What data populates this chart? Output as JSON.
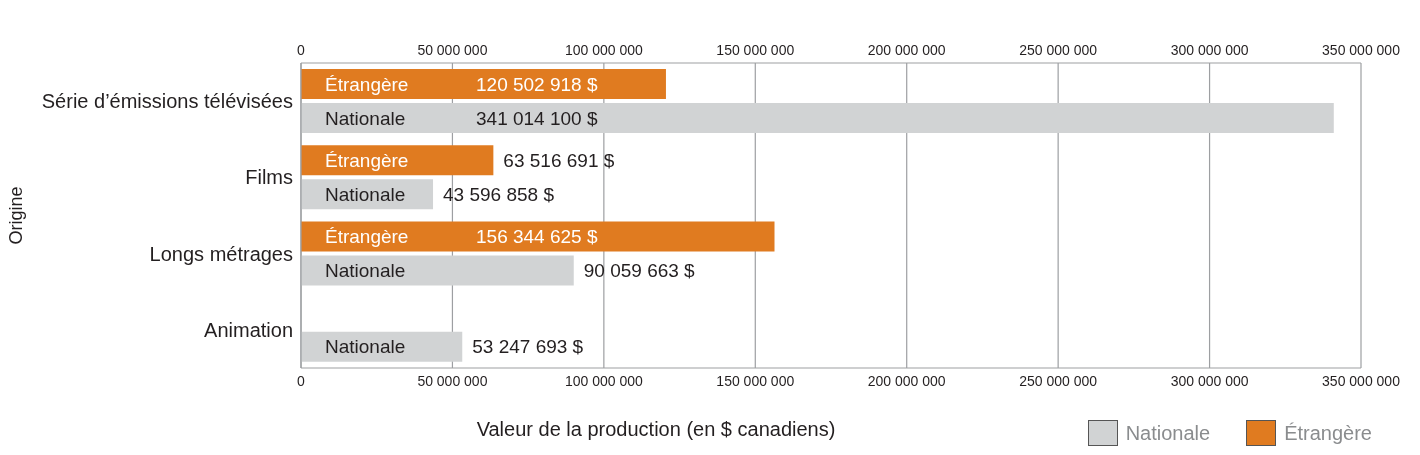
{
  "chart_data": {
    "type": "bar",
    "orientation": "horizontal",
    "xlabel": "Valeur de la production (en $ canadiens)",
    "ylabel": "Origine",
    "categories": [
      "Série d’émissions télévisées",
      "Films",
      "Longs métrages",
      "Animation"
    ],
    "series": [
      {
        "name": "Étrangère",
        "color": "#e07b20",
        "values": [
          120502918,
          63516691,
          156344625,
          null
        ],
        "value_labels": [
          "120 502 918 $",
          "63 516 691 $",
          "156 344 625 $",
          null
        ]
      },
      {
        "name": "Nationale",
        "color": "#d1d3d4",
        "values": [
          341014100,
          43596858,
          90059663,
          53247693
        ],
        "value_labels": [
          "341 014 100 $",
          "43 596 858 $",
          "90 059 663 $",
          "53 247 693 $"
        ]
      }
    ],
    "xlim": [
      0,
      350000000
    ],
    "xticks": [
      0,
      {
        "value": 50000000,
        "label": "50 000 000"
      },
      {
        "value": 100000000,
        "label": "100 000 000"
      },
      {
        "value": 150000000,
        "label": "150 000 000"
      },
      {
        "value": 200000000,
        "label": "200 000 000"
      },
      {
        "value": 250000000,
        "label": "250 000 000"
      },
      {
        "value": 300000000,
        "label": "300 000 000"
      },
      {
        "value": 350000000,
        "label": "350 000 000"
      }
    ],
    "x2lim": [
      0,
      350000000
    ],
    "x2ticks": [
      0,
      {
        "value": 50000000,
        "label": "50 000 000"
      },
      {
        "value": 100000000,
        "label": "100 000 000"
      },
      {
        "value": 150000000,
        "label": "150 000 000"
      },
      {
        "value": 200000000,
        "label": "200 000 000"
      },
      {
        "value": 250000000,
        "label": "250 000 000"
      },
      {
        "value": 300000000,
        "label": "300 000 000"
      },
      {
        "value": 350000000,
        "label": "350 000 000"
      }
    ],
    "grid": "x",
    "legend": "bottom right"
  }
}
